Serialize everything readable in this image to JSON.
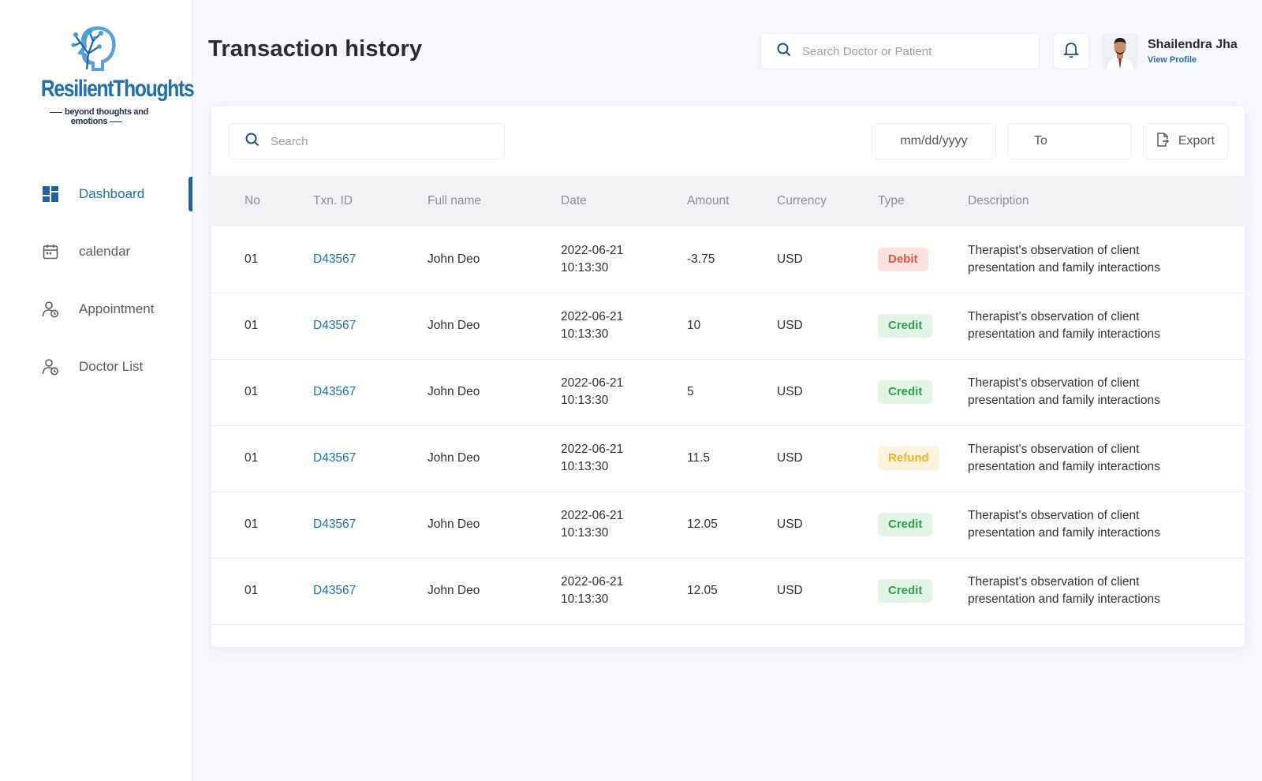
{
  "brand": {
    "name": "ResilientThoughts",
    "tagline": "beyond thoughts and emotions",
    "color": "#1f6fae"
  },
  "sidebar": {
    "items": [
      {
        "label": "Dashboard",
        "icon": "dashboard-grid-icon",
        "active": true
      },
      {
        "label": "calendar",
        "icon": "calendar-icon",
        "active": false
      },
      {
        "label": "Appointment",
        "icon": "user-clock-icon",
        "active": false
      },
      {
        "label": "Doctor List",
        "icon": "user-clock-icon",
        "active": false
      }
    ]
  },
  "header": {
    "title": "Transaction history",
    "search_placeholder": "Search Doctor or Patient",
    "profile_name": "Shailendra Jha",
    "profile_link": "View Profile"
  },
  "toolbar": {
    "search_placeholder": "Search",
    "date_from": "mm/dd/yyyy",
    "date_to": "To",
    "export_label": "Export"
  },
  "table": {
    "columns": [
      "No",
      "Txn. ID",
      "Full name",
      "Date",
      "Amount",
      "Currency",
      "Type",
      "Description"
    ],
    "rows": [
      {
        "no": "01",
        "txn": "D43567",
        "name": "John Deo",
        "date": "2022-06-21",
        "time": "10:13:30",
        "amount": "-3.75",
        "currency": "USD",
        "type": "Debit",
        "desc1": "Therapist's observation of client",
        "desc2": "presentation and family interactions"
      },
      {
        "no": "01",
        "txn": "D43567",
        "name": "John Deo",
        "date": "2022-06-21",
        "time": "10:13:30",
        "amount": "10",
        "currency": "USD",
        "type": "Credit",
        "desc1": "Therapist's observation of client",
        "desc2": "presentation and family interactions"
      },
      {
        "no": "01",
        "txn": "D43567",
        "name": "John Deo",
        "date": "2022-06-21",
        "time": "10:13:30",
        "amount": "5",
        "currency": "USD",
        "type": "Credit",
        "desc1": "Therapist's observation of client",
        "desc2": "presentation and family interactions"
      },
      {
        "no": "01",
        "txn": "D43567",
        "name": "John Deo",
        "date": "2022-06-21",
        "time": "10:13:30",
        "amount": "11.5",
        "currency": "USD",
        "type": "Refund",
        "desc1": "Therapist's observation of client",
        "desc2": "presentation and family interactions"
      },
      {
        "no": "01",
        "txn": "D43567",
        "name": "John Deo",
        "date": "2022-06-21",
        "time": "10:13:30",
        "amount": "12.05",
        "currency": "USD",
        "type": "Credit",
        "desc1": "Therapist's observation of client",
        "desc2": "presentation and family interactions"
      },
      {
        "no": "01",
        "txn": "D43567",
        "name": "John Deo",
        "date": "2022-06-21",
        "time": "10:13:30",
        "amount": "12.05",
        "currency": "USD",
        "type": "Credit",
        "desc1": "Therapist's observation of client",
        "desc2": "presentation and family interactions"
      }
    ]
  },
  "colors": {
    "debit": "#e4573f",
    "credit": "#2aa04a",
    "refund": "#f0b324",
    "accent": "#1f6fae"
  }
}
